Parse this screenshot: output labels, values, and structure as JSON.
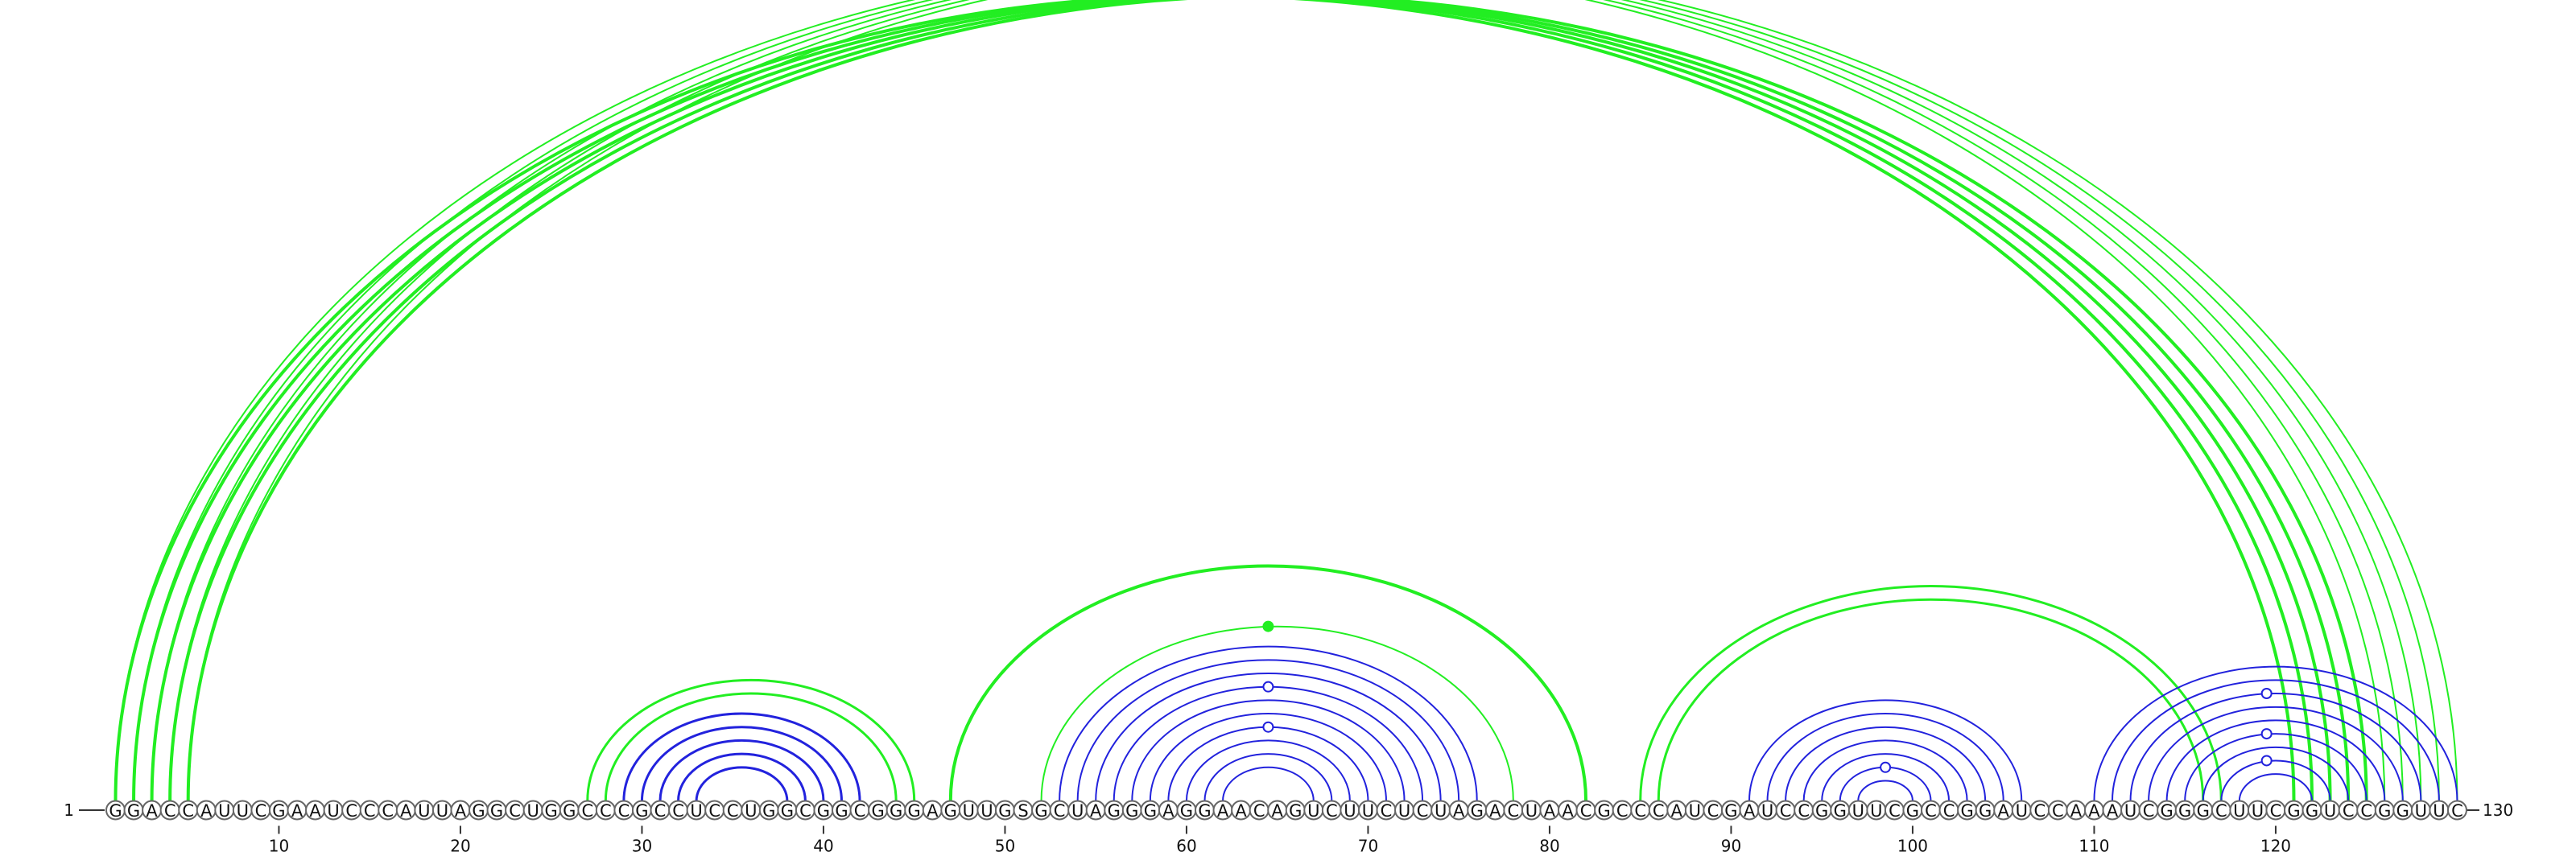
{
  "sequence": "GGACCAUUCGAAUCCCAUUAGGCUGGCCCGCCUCCUGGCGGCGGGAGUUGSGCUAGGGAGGAACAGUCUUCUCUAGACUAACGCCCAUCGAUCCGGUUCGCCGGAUCCAAAUCGGGCUUCGGUCCGGUUC",
  "start_label": "1",
  "end_label": "130",
  "ticks": [
    10,
    20,
    30,
    40,
    50,
    60,
    70,
    80,
    90,
    100,
    110,
    120
  ],
  "colors": {
    "green": "#22ee22",
    "blue": "#2222dd"
  },
  "arc_groups": [
    {
      "color": "green",
      "weight": 4,
      "pairs": [
        [
          1,
          121
        ],
        [
          2,
          122
        ],
        [
          3,
          123
        ],
        [
          4,
          124
        ],
        [
          5,
          125
        ]
      ]
    },
    {
      "color": "green",
      "weight": 2,
      "pairs": [
        [
          1,
          126
        ],
        [
          2,
          127
        ],
        [
          3,
          128
        ],
        [
          4,
          129
        ],
        [
          5,
          130
        ]
      ]
    },
    {
      "color": "green",
      "weight": 3,
      "pairs": [
        [
          27,
          45
        ],
        [
          28,
          44
        ]
      ]
    },
    {
      "color": "blue",
      "weight": 3,
      "pairs": [
        [
          29,
          42
        ],
        [
          30,
          41
        ],
        [
          31,
          40
        ],
        [
          32,
          39
        ],
        [
          33,
          38
        ]
      ]
    },
    {
      "color": "green",
      "weight": 4,
      "pairs": [
        [
          47,
          82
        ]
      ]
    },
    {
      "color": "green",
      "weight": 2,
      "pairs": [
        [
          52,
          78
        ]
      ]
    },
    {
      "color": "blue",
      "weight": 2,
      "pairs": [
        [
          53,
          76
        ],
        [
          54,
          75
        ],
        [
          55,
          74
        ],
        [
          56,
          73
        ],
        [
          57,
          72
        ],
        [
          58,
          71
        ],
        [
          59,
          70
        ],
        [
          60,
          69
        ],
        [
          61,
          68
        ],
        [
          62,
          67
        ]
      ]
    },
    {
      "color": "green",
      "weight": 3,
      "pairs": [
        [
          85,
          117
        ],
        [
          86,
          116
        ]
      ]
    },
    {
      "color": "blue",
      "weight": 2,
      "pairs": [
        [
          91,
          106
        ],
        [
          92,
          105
        ],
        [
          93,
          104
        ],
        [
          94,
          103
        ],
        [
          95,
          102
        ],
        [
          96,
          101
        ],
        [
          97,
          100
        ]
      ]
    },
    {
      "color": "blue",
      "weight": 2,
      "pairs": [
        [
          110,
          130
        ],
        [
          111,
          129
        ],
        [
          112,
          128
        ],
        [
          113,
          127
        ],
        [
          114,
          126
        ],
        [
          115,
          125
        ],
        [
          116,
          124
        ],
        [
          117,
          123
        ],
        [
          118,
          122
        ]
      ]
    }
  ],
  "markers": [
    {
      "color": "green",
      "filled": false,
      "pos": 65.5,
      "level": "outer"
    },
    {
      "color": "green",
      "filled": true,
      "pos": 64.5,
      "level": "mid"
    },
    {
      "color": "blue",
      "filled": false,
      "pos": 64.5,
      "level": "a"
    },
    {
      "color": "blue",
      "filled": false,
      "pos": 64.5,
      "level": "b"
    },
    {
      "color": "blue",
      "filled": false,
      "pos": 98.5,
      "level": "c"
    },
    {
      "color": "blue",
      "filled": false,
      "pos": 119.5,
      "level": "d"
    },
    {
      "color": "blue",
      "filled": false,
      "pos": 119.5,
      "level": "e"
    },
    {
      "color": "blue",
      "filled": false,
      "pos": 119.5,
      "level": "f"
    }
  ]
}
